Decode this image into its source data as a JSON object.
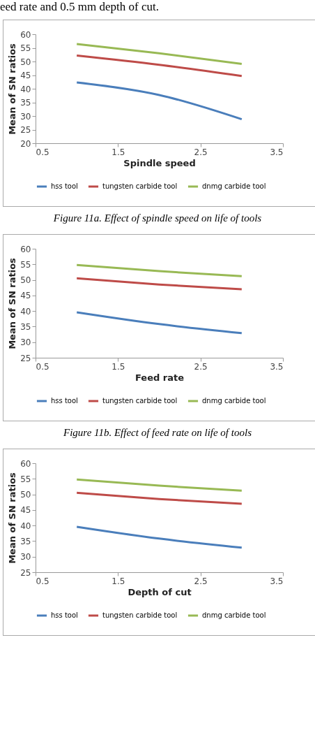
{
  "chart_data": [
    {
      "type": "line",
      "xlabel": "Spindle speed",
      "ylabel": "Mean of SN ratios",
      "x": [
        1,
        2,
        3
      ],
      "xlim": [
        0.5,
        3.5
      ],
      "xticks": [
        0.5,
        1.5,
        2.5,
        3.5
      ],
      "ylim": [
        20,
        60
      ],
      "yticks": [
        20,
        25,
        30,
        35,
        40,
        45,
        50,
        55,
        60
      ],
      "grid": false,
      "legend": "bottom",
      "series": [
        {
          "name": "hss tool",
          "color": "#4a7ebb",
          "values": [
            42.3,
            37.7,
            28.8
          ]
        },
        {
          "name": "tungsten carbide tool",
          "color": "#be4b48",
          "values": [
            52.2,
            48.8,
            44.7
          ]
        },
        {
          "name": "dnmg carbide tool",
          "color": "#98b954",
          "values": [
            56.4,
            53.0,
            49.1
          ]
        }
      ],
      "annotations": [
        "eed rate and 0.5 mm depth of cut.",
        "Figure 11a. Effect of spindle speed on life of tools"
      ]
    },
    {
      "type": "line",
      "xlabel": "Feed rate",
      "ylabel": "Mean of SN ratios",
      "x": [
        1,
        2,
        3
      ],
      "xlim": [
        0.5,
        3.5
      ],
      "xticks": [
        0.5,
        1.5,
        2.5,
        3.5
      ],
      "ylim": [
        25,
        60
      ],
      "yticks": [
        25,
        30,
        35,
        40,
        45,
        50,
        55,
        60
      ],
      "grid": false,
      "legend": "bottom",
      "series": [
        {
          "name": "hss tool",
          "color": "#4a7ebb",
          "values": [
            39.6,
            35.8,
            32.9
          ]
        },
        {
          "name": "tungsten carbide tool",
          "color": "#be4b48",
          "values": [
            50.5,
            48.5,
            47.0
          ]
        },
        {
          "name": "dnmg carbide tool",
          "color": "#98b954",
          "values": [
            54.8,
            52.8,
            51.2
          ]
        }
      ],
      "annotations": [
        "Figure 11b. Effect of feed rate on life of tools"
      ]
    },
    {
      "type": "line",
      "xlabel": "Depth of cut",
      "ylabel": "Mean of SN ratios",
      "x": [
        1,
        2,
        3
      ],
      "xlim": [
        0.5,
        3.5
      ],
      "xticks": [
        0.5,
        1.5,
        2.5,
        3.5
      ],
      "ylim": [
        25,
        60
      ],
      "yticks": [
        25,
        30,
        35,
        40,
        45,
        50,
        55,
        60
      ],
      "grid": false,
      "legend": "bottom",
      "series": [
        {
          "name": "hss tool",
          "color": "#4a7ebb",
          "values": [
            39.6,
            35.8,
            32.9
          ]
        },
        {
          "name": "tungsten carbide tool",
          "color": "#be4b48",
          "values": [
            50.5,
            48.5,
            47.0
          ]
        },
        {
          "name": "dnmg carbide tool",
          "color": "#98b954",
          "values": [
            54.8,
            52.8,
            51.2
          ]
        }
      ]
    }
  ]
}
